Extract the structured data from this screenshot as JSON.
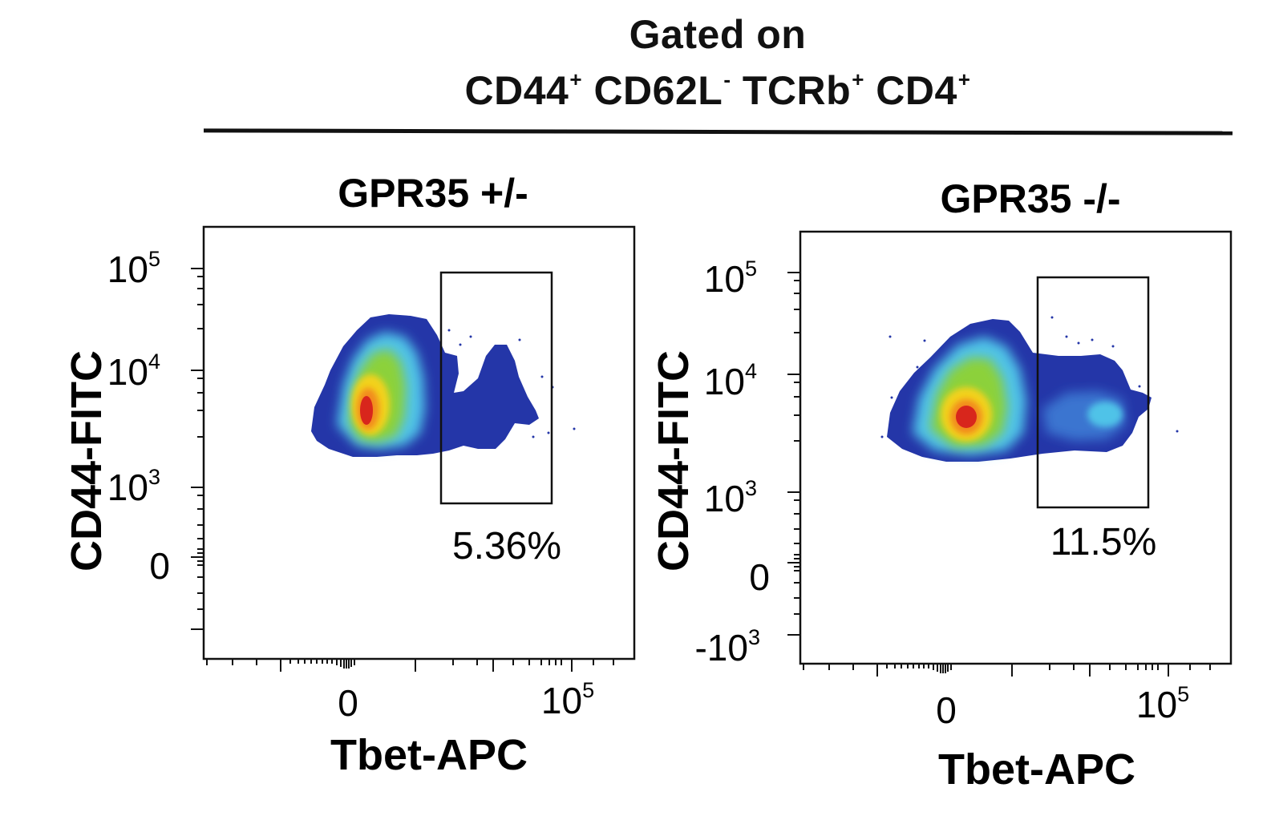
{
  "header": {
    "line1": "Gated on",
    "line2_parts": [
      {
        "text": "CD44",
        "sup": "+"
      },
      {
        "text": " CD62L",
        "sup": "-"
      },
      {
        "text": " TCRb",
        "sup": "+"
      },
      {
        "text": " CD4",
        "sup": "+"
      }
    ]
  },
  "chart_data": [
    {
      "type": "scatter",
      "subtype": "flow-cytometry-density",
      "title": "GPR35 +/-",
      "xlabel": "Tbet-APC",
      "ylabel": "CD44-FITC",
      "x_ticks": [
        "0",
        "10^5"
      ],
      "y_ticks": [
        "10^5",
        "10^4",
        "10^3",
        "0"
      ],
      "gate": {
        "label": "5.36%",
        "percent": 5.36
      },
      "density_peak": {
        "x_desc": "near 0",
        "y": 4500
      }
    },
    {
      "type": "scatter",
      "subtype": "flow-cytometry-density",
      "title": "GPR35 -/-",
      "xlabel": "Tbet-APC",
      "ylabel": "CD44-FITC",
      "x_ticks": [
        "0",
        "10^5"
      ],
      "y_ticks": [
        "10^5",
        "10^4",
        "10^3",
        "0",
        "-10^3"
      ],
      "gate": {
        "label": "11.5%",
        "percent": 11.5
      },
      "density_peak": {
        "x_desc": "near 0",
        "y": 4500
      }
    }
  ],
  "labels": {
    "p1": {
      "title": "GPR35 +/-",
      "xlabel": "Tbet-APC",
      "ylabel": "CD44-FITC",
      "gate_pct": "5.36%",
      "y_ticks": [
        {
          "base": "10",
          "exp": "5"
        },
        {
          "base": "10",
          "exp": "4"
        },
        {
          "base": "10",
          "exp": "3"
        },
        {
          "base": "0",
          "exp": ""
        }
      ],
      "x_ticks": [
        {
          "base": "0",
          "exp": ""
        },
        {
          "base": "10",
          "exp": "5"
        }
      ]
    },
    "p2": {
      "title": "GPR35 -/-",
      "xlabel": "Tbet-APC",
      "ylabel": "CD44-FITC",
      "gate_pct": "11.5%",
      "y_ticks": [
        {
          "base": "10",
          "exp": "5"
        },
        {
          "base": "10",
          "exp": "4"
        },
        {
          "base": "10",
          "exp": "3"
        },
        {
          "base": "0",
          "exp": ""
        },
        {
          "base": "-10",
          "exp": "3"
        }
      ],
      "x_ticks": [
        {
          "base": "0",
          "exp": ""
        },
        {
          "base": "10",
          "exp": "5"
        }
      ]
    }
  },
  "colors": {
    "density_low": "#2436a8",
    "density_mid_low": "#4fc3e8",
    "density_mid": "#8cd13a",
    "density_high": "#f2d21b",
    "density_peak": "#d8261c",
    "axis": "#111111",
    "gate": "#111111"
  }
}
